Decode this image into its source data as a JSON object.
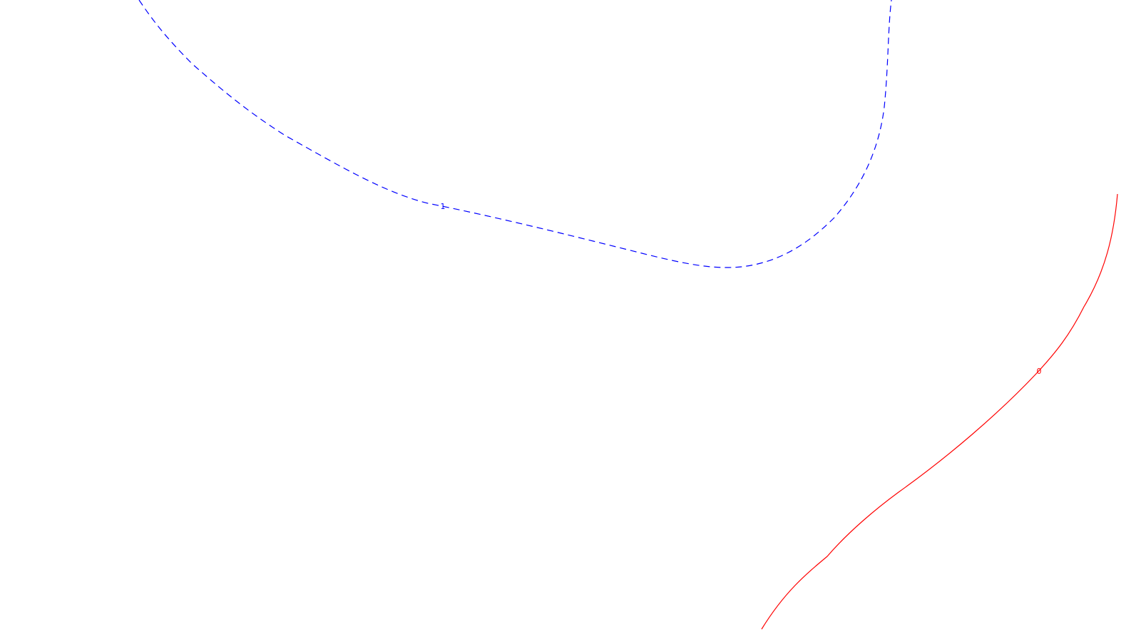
{
  "chart_data": {
    "type": "line",
    "title": "",
    "xlabel": "",
    "ylabel": "",
    "grid": false,
    "legend": false,
    "series": [
      {
        "label": "1",
        "color": "#0000ff",
        "line_style": "dashed"
      },
      {
        "label": "0",
        "color": "#ff0000",
        "line_style": "solid"
      }
    ]
  }
}
